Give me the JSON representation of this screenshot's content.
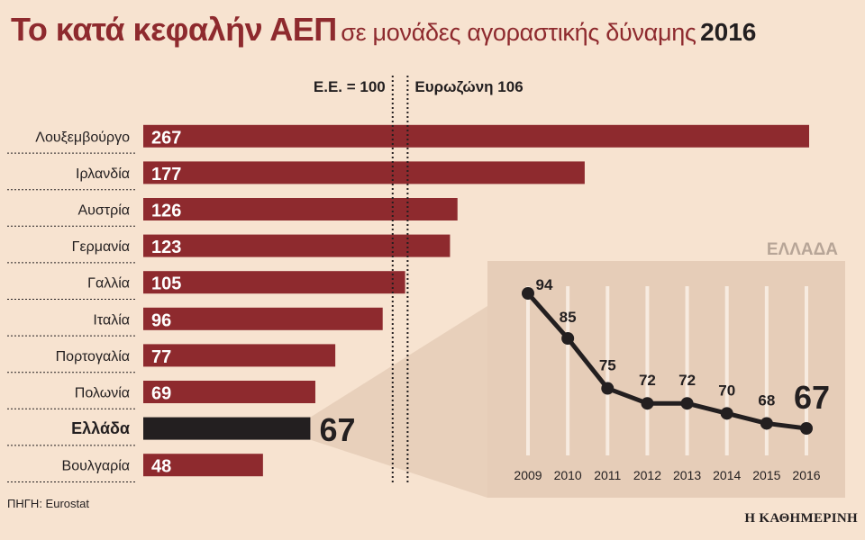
{
  "title": {
    "main": "Το κατά κεφαλήν ΑΕΠ",
    "subtitle": "σε μονάδες αγοραστικής δύναμης",
    "year": "2016"
  },
  "source": "ΠΗΓΗ: Eurostat",
  "publisher": "Η ΚΑΘΗΜΕΡΙΝΗ",
  "colors": {
    "background": "#f7e3d0",
    "bar": "#8e2a2e",
    "highlight_bar": "#231f20",
    "inset_panel": "#e6cdb8",
    "line": "#231f20"
  },
  "chart_data": [
    {
      "type": "bar",
      "orientation": "horizontal",
      "categories": [
        "Λουξεμβούργο",
        "Ιρλανδία",
        "Αυστρία",
        "Γερμανία",
        "Γαλλία",
        "Ιταλία",
        "Πορτογαλία",
        "Πολωνία",
        "Ελλάδα",
        "Βουλγαρία"
      ],
      "values": [
        267,
        177,
        126,
        123,
        105,
        96,
        77,
        69,
        67,
        48
      ],
      "highlight": "Ελλάδα",
      "reference_lines": [
        {
          "label": "Ε.Ε. = 100",
          "value": 100
        },
        {
          "label": "Ευρωζώνη 106",
          "value": 106
        }
      ],
      "xlim": [
        0,
        270
      ],
      "grid": false
    },
    {
      "type": "line",
      "title": "ΕΛΛΑΔΑ",
      "x": [
        "2009",
        "2010",
        "2011",
        "2012",
        "2013",
        "2014",
        "2015",
        "2016"
      ],
      "values": [
        94,
        85,
        75,
        72,
        72,
        70,
        68,
        67
      ],
      "ylim": [
        60,
        100
      ],
      "grid": "vertical"
    }
  ]
}
